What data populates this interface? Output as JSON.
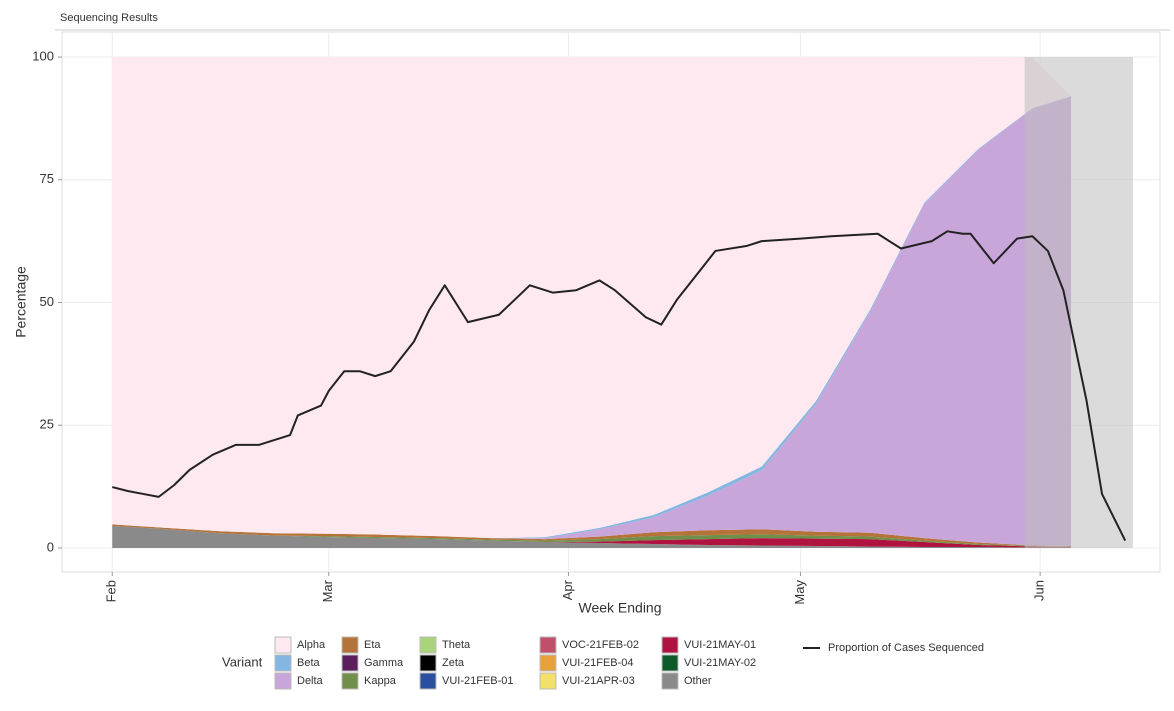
{
  "chart_data": {
    "type": "stacked_area",
    "title": "Sequencing Results",
    "x_label": "Week Ending",
    "y_label": "Percentage",
    "legend_title": "Variant",
    "grid": true,
    "xlim": [
      -6.5,
      135.5
    ],
    "xticks": [
      {
        "value": 0,
        "label": "Feb"
      },
      {
        "value": 28,
        "label": "Mar"
      },
      {
        "value": 59,
        "label": "Apr"
      },
      {
        "value": 89,
        "label": "May"
      },
      {
        "value": 120,
        "label": "Jun"
      }
    ],
    "ylim": [
      -4.9,
      105.1
    ],
    "yticks": [
      0,
      25,
      50,
      75,
      100
    ],
    "shaded_x": [
      118,
      132
    ],
    "x": [
      0,
      7,
      14,
      21,
      28,
      35,
      42,
      49,
      56,
      63,
      70,
      77,
      84,
      91,
      98,
      105,
      112,
      119,
      124
    ],
    "series": [
      {
        "name": "Alpha",
        "color": "#fde9ef",
        "values": [
          95.2,
          95.9,
          96.6,
          97,
          97.1,
          97.3,
          97.6,
          98,
          97.8,
          95.9,
          93.3,
          88.7,
          83.4,
          70.1,
          51.5,
          29.7,
          18.7,
          10.3,
          0
        ]
      },
      {
        "name": "Beta",
        "color": "#84b6e2",
        "values": [
          0,
          0,
          0,
          0,
          0,
          0,
          0,
          0,
          0.2,
          0.3,
          0.5,
          0.7,
          0.8,
          0.6,
          0.4,
          0.3,
          0.2,
          0.1,
          0.1
        ]
      },
      {
        "name": "Delta",
        "color": "#c9a6da",
        "values": [
          0,
          0,
          0,
          0,
          0,
          0,
          0,
          0,
          0.2,
          1.5,
          3,
          7,
          12,
          26,
          45,
          68,
          80,
          89,
          91.5
        ]
      },
      {
        "name": "Eta",
        "color": "#b5733a",
        "values": [
          0.3,
          0.3,
          0.4,
          0.5,
          0.5,
          0.5,
          0.4,
          0.3,
          0.3,
          0.5,
          0.8,
          1,
          1,
          0.8,
          0.8,
          0.5,
          0.3,
          0.1,
          0.1
        ]
      },
      {
        "name": "Gamma",
        "color": "#5b1f5e",
        "values": [
          0,
          0,
          0,
          0,
          0,
          0,
          0,
          0,
          0,
          0,
          0,
          0,
          0,
          0,
          0,
          0,
          0,
          0,
          0
        ]
      },
      {
        "name": "Kappa",
        "color": "#6f8f4a",
        "values": [
          0,
          0,
          0,
          0,
          0.2,
          0.2,
          0.2,
          0.2,
          0.3,
          0.5,
          0.8,
          0.8,
          0.8,
          0.6,
          0.5,
          0.3,
          0.2,
          0.1,
          0.1
        ]
      },
      {
        "name": "Theta",
        "color": "#a8d47c",
        "values": [
          0,
          0,
          0,
          0,
          0,
          0,
          0,
          0,
          0,
          0,
          0,
          0,
          0,
          0,
          0,
          0,
          0,
          0,
          0
        ]
      },
      {
        "name": "Zeta",
        "color": "#000000",
        "values": [
          0,
          0,
          0,
          0,
          0,
          0,
          0,
          0,
          0,
          0,
          0,
          0,
          0,
          0,
          0,
          0,
          0,
          0,
          0
        ]
      },
      {
        "name": "VUI-21FEB-01",
        "color": "#2a4f9e",
        "values": [
          0,
          0,
          0,
          0,
          0,
          0,
          0,
          0,
          0,
          0,
          0,
          0,
          0,
          0,
          0,
          0,
          0,
          0,
          0
        ]
      },
      {
        "name": "VOC-21FEB-02",
        "color": "#c0506a",
        "values": [
          0,
          0,
          0,
          0,
          0,
          0,
          0,
          0,
          0,
          0,
          0,
          0,
          0,
          0,
          0,
          0,
          0,
          0,
          0
        ]
      },
      {
        "name": "VUI-21FEB-04",
        "color": "#e8a13a",
        "values": [
          0,
          0,
          0,
          0,
          0,
          0,
          0,
          0,
          0,
          0,
          0,
          0,
          0,
          0,
          0,
          0,
          0,
          0,
          0
        ]
      },
      {
        "name": "VUI-21APR-03",
        "color": "#f3e06a",
        "values": [
          0,
          0,
          0,
          0,
          0,
          0,
          0,
          0,
          0,
          0,
          0,
          0,
          0,
          0,
          0,
          0,
          0,
          0,
          0
        ]
      },
      {
        "name": "VUI-21MAY-01",
        "color": "#b0133f",
        "values": [
          0,
          0,
          0,
          0,
          0,
          0,
          0,
          0,
          0,
          0.3,
          0.8,
          1.2,
          1.5,
          1.5,
          1.5,
          1,
          0.4,
          0.2,
          0.1
        ]
      },
      {
        "name": "VUI-21MAY-02",
        "color": "#0e5a2a",
        "values": [
          0,
          0,
          0,
          0,
          0,
          0,
          0,
          0,
          0,
          0,
          0,
          0,
          0,
          0,
          0,
          0,
          0,
          0,
          0
        ]
      },
      {
        "name": "Other",
        "color": "#8a8a8a",
        "values": [
          4.5,
          3.8,
          3,
          2.5,
          2.2,
          2,
          1.8,
          1.5,
          1.2,
          1,
          0.8,
          0.6,
          0.5,
          0.4,
          0.3,
          0.2,
          0.2,
          0.1,
          0.1
        ]
      }
    ],
    "line_series": {
      "name": "Proportion of Cases Sequenced",
      "color": "#222222",
      "x": [
        0,
        2,
        4,
        6,
        8,
        10,
        13,
        16,
        19,
        21,
        23,
        24,
        27,
        28,
        30,
        32,
        34,
        36,
        39,
        41,
        43,
        46,
        50,
        54,
        57,
        60,
        63,
        65,
        69,
        71,
        73,
        76,
        78,
        82,
        84,
        89,
        93,
        99,
        102,
        106,
        108,
        110,
        111,
        114,
        117,
        119,
        121,
        123,
        126,
        128,
        131
      ],
      "values": [
        12.4,
        11.6,
        11,
        10.4,
        12.8,
        15.9,
        19,
        21,
        21,
        22,
        23,
        27,
        29,
        32,
        36,
        36,
        35,
        36,
        42,
        48.5,
        53.5,
        46,
        47.5,
        53.5,
        52,
        52.5,
        54.5,
        52.5,
        47,
        45.5,
        50.5,
        56.5,
        60.5,
        61.5,
        62.5,
        63,
        63.5,
        64,
        61,
        62.5,
        64.5,
        64,
        64,
        58,
        63,
        63.5,
        60.5,
        52.5,
        30,
        11,
        1.5
      ]
    }
  }
}
